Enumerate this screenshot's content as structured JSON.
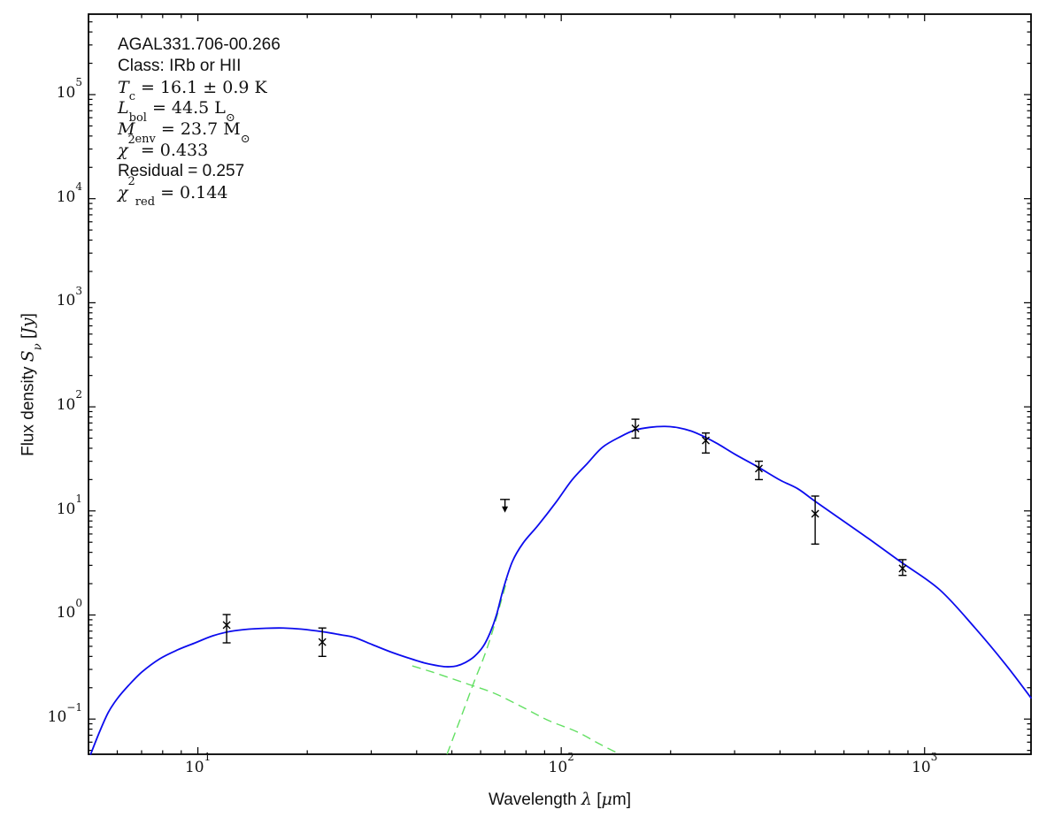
{
  "figure": {
    "background": "#ffffff"
  },
  "annotation": {
    "lines": [
      {
        "font": "sans",
        "parts": [
          {
            "t": "AGAL331.706-00.266"
          }
        ]
      },
      {
        "font": "sans",
        "parts": [
          {
            "t": "Class: IRb or HII"
          }
        ]
      },
      {
        "font": "math",
        "parts": [
          {
            "t": "T",
            "i": true
          },
          {
            "t": "c",
            "sub": true
          },
          {
            "t": " = 16.1 ± 0.9 K"
          }
        ]
      },
      {
        "font": "math",
        "parts": [
          {
            "t": "L",
            "i": true
          },
          {
            "t": "bol",
            "sub": true
          },
          {
            "t": " = 44.5 L"
          },
          {
            "t": "⊙",
            "sub": true
          }
        ]
      },
      {
        "font": "math",
        "parts": [
          {
            "t": "M",
            "i": true
          },
          {
            "t": "env",
            "sub": true
          },
          {
            "t": " = 23.7 M"
          },
          {
            "t": "⊙",
            "sub": true
          }
        ]
      },
      {
        "font": "math",
        "parts": [
          {
            "t": "χ",
            "i": true
          },
          {
            "t": "2",
            "sup": true
          },
          {
            "t": " = 0.433"
          }
        ]
      },
      {
        "font": "sans",
        "parts": [
          {
            "t": "Residual = 0.257"
          }
        ]
      },
      {
        "font": "math",
        "parts": [
          {
            "t": "χ",
            "i": true
          },
          {
            "t": "2",
            "sup": true
          },
          {
            "t": "red",
            "sub": true
          },
          {
            "t": " = 0.144"
          }
        ]
      }
    ]
  },
  "chart_data": {
    "type": "line",
    "title": "AGAL331.706-00.266",
    "xlabel": "Wavelength λ [μm]",
    "ylabel": "Flux density Sν [Jy]",
    "xlabel_parts": [
      {
        "t": "Wavelength "
      },
      {
        "t": "λ",
        "mvar": true
      },
      {
        "t": " ["
      },
      {
        "t": "μ",
        "mvar": true
      },
      {
        "t": "m]"
      }
    ],
    "ylabel_parts": [
      {
        "t": "Flux density "
      },
      {
        "t": "S",
        "mvar": true
      },
      {
        "t": "ν",
        "mvar": true,
        "sub": true
      },
      {
        "t": " ["
      },
      {
        "t": "Jy",
        "mvar": true
      },
      {
        "t": "]"
      }
    ],
    "x_axis": {
      "scale": "log",
      "min": 5.0,
      "max": 1963,
      "major_ticks": [
        10,
        100,
        1000
      ],
      "tick_labels": [
        "10^1",
        "10^2",
        "10^3"
      ]
    },
    "y_axis": {
      "scale": "log",
      "min": 0.0459,
      "max": 593000,
      "major_ticks": [
        0.1,
        1,
        10,
        100,
        1000,
        10000,
        100000
      ],
      "tick_labels": [
        "10^-1",
        "10^0",
        "10^1",
        "10^2",
        "10^3",
        "10^4",
        "10^5"
      ]
    },
    "grid": false,
    "legend": "none",
    "colors": {
      "model_total": "#0c0cee",
      "model_components": "#63e063",
      "data": "#000000"
    },
    "data_points": [
      {
        "wavelength_um": 12,
        "flux_jy": 0.8,
        "err_hi_jy": 1.01,
        "err_lo_jy": 0.54
      },
      {
        "wavelength_um": 22,
        "flux_jy": 0.55,
        "err_hi_jy": 0.75,
        "err_lo_jy": 0.4
      },
      {
        "wavelength_um": 70,
        "flux_jy": 12.9,
        "upper_limit": true
      },
      {
        "wavelength_um": 160,
        "flux_jy": 62,
        "err_hi_jy": 76,
        "err_lo_jy": 50
      },
      {
        "wavelength_um": 250,
        "flux_jy": 47.5,
        "err_hi_jy": 56,
        "err_lo_jy": 36
      },
      {
        "wavelength_um": 350,
        "flux_jy": 25.5,
        "err_hi_jy": 30,
        "err_lo_jy": 20
      },
      {
        "wavelength_um": 500,
        "flux_jy": 9.4,
        "err_hi_jy": 13.9,
        "err_lo_jy": 4.8
      },
      {
        "wavelength_um": 870,
        "flux_jy": 2.8,
        "err_hi_jy": 3.4,
        "err_lo_jy": 2.4
      }
    ],
    "model_total": [
      [
        5.07,
        0.046
      ],
      [
        5.36,
        0.075
      ],
      [
        5.67,
        0.116
      ],
      [
        6.0,
        0.157
      ],
      [
        6.45,
        0.211
      ],
      [
        7.02,
        0.284
      ],
      [
        7.85,
        0.379
      ],
      [
        8.79,
        0.462
      ],
      [
        9.83,
        0.54
      ],
      [
        11.0,
        0.631
      ],
      [
        12.3,
        0.696
      ],
      [
        13.8,
        0.731
      ],
      [
        15.4,
        0.746
      ],
      [
        17.2,
        0.749
      ],
      [
        19.3,
        0.731
      ],
      [
        22.1,
        0.689
      ],
      [
        24.8,
        0.644
      ],
      [
        27.0,
        0.607
      ],
      [
        30.2,
        0.519
      ],
      [
        33.8,
        0.444
      ],
      [
        37.8,
        0.388
      ],
      [
        42.3,
        0.344
      ],
      [
        46.1,
        0.324
      ],
      [
        48.7,
        0.318
      ],
      [
        51.5,
        0.324
      ],
      [
        54.5,
        0.35
      ],
      [
        57.7,
        0.4
      ],
      [
        61.0,
        0.5
      ],
      [
        63.8,
        0.683
      ],
      [
        66.4,
        1.01
      ],
      [
        69.4,
        1.82
      ],
      [
        73.4,
        3.27
      ],
      [
        78.6,
        4.93
      ],
      [
        86.4,
        7.29
      ],
      [
        96.7,
        12.1
      ],
      [
        107,
        19.8
      ],
      [
        118,
        28.6
      ],
      [
        130,
        41.0
      ],
      [
        146,
        52.0
      ],
      [
        159,
        59.5
      ],
      [
        175,
        63.5
      ],
      [
        193,
        64.8
      ],
      [
        210,
        63.0
      ],
      [
        228,
        58.5
      ],
      [
        248,
        51.5
      ],
      [
        270,
        44.0
      ],
      [
        302,
        34.7
      ],
      [
        348,
        26.4
      ],
      [
        400,
        19.8
      ],
      [
        448,
        16.3
      ],
      [
        496,
        12.6
      ],
      [
        583,
        8.5
      ],
      [
        702,
        5.4
      ],
      [
        864,
        3.2
      ],
      [
        1100,
        1.75
      ],
      [
        1377,
        0.75
      ],
      [
        1676,
        0.33
      ],
      [
        1962,
        0.16
      ]
    ],
    "component_cold": [
      [
        48.5,
        0.046
      ],
      [
        51.2,
        0.076
      ],
      [
        54.2,
        0.129
      ],
      [
        57.7,
        0.233
      ],
      [
        61.0,
        0.379
      ],
      [
        63.8,
        0.596
      ],
      [
        66.4,
        0.95
      ],
      [
        69.4,
        1.65
      ],
      [
        71.0,
        2.2
      ]
    ],
    "component_warm": [
      [
        38.9,
        0.324
      ],
      [
        42.8,
        0.293
      ],
      [
        46.6,
        0.266
      ],
      [
        55.1,
        0.218
      ],
      [
        65.4,
        0.177
      ],
      [
        78.6,
        0.129
      ],
      [
        92.8,
        0.096
      ],
      [
        110,
        0.076
      ],
      [
        127,
        0.058
      ],
      [
        143,
        0.047
      ]
    ]
  }
}
